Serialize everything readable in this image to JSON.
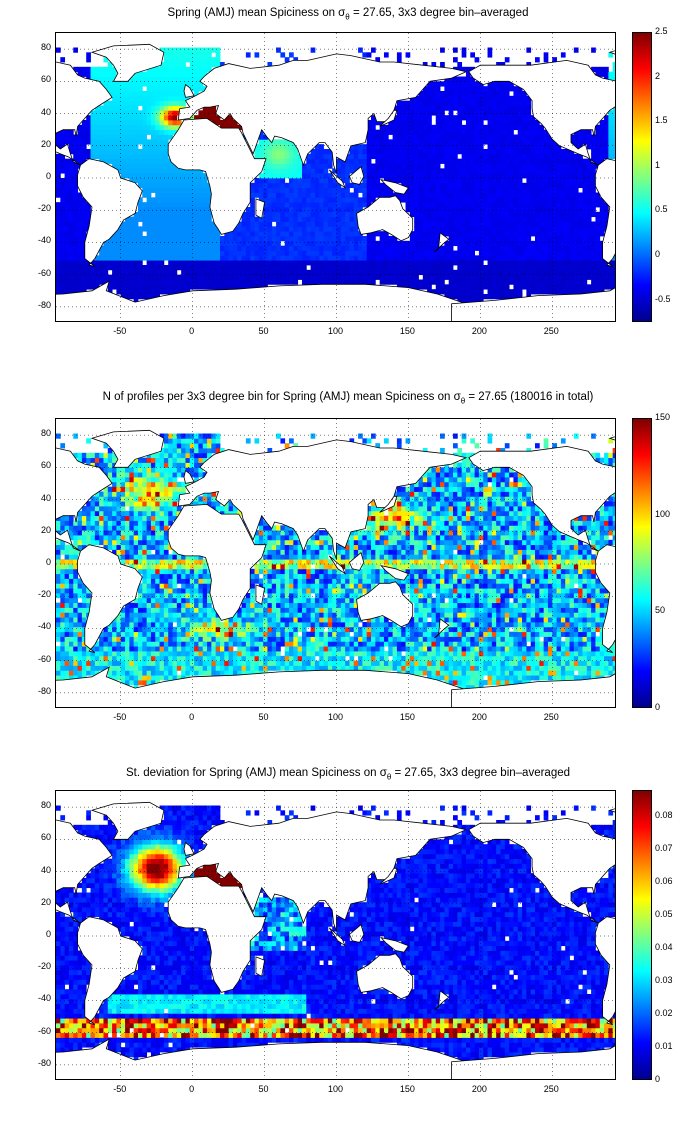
{
  "panels": [
    {
      "title_prefix": "Spring (AMJ) mean Spiciness on σ",
      "title_sub": "θ",
      "title_suffix": " = 27.65, 3x3 degree bin–averaged",
      "colorbar_ticks": [
        "2.5",
        "2",
        "1.5",
        "1",
        "0.5",
        "0",
        "-0.5"
      ],
      "colorbar_range": [
        -0.75,
        2.5
      ],
      "field": "spiciness"
    },
    {
      "title_prefix": "N of profiles per 3x3 degree bin for Spring (AMJ) mean Spiciness on σ",
      "title_sub": "θ",
      "title_suffix": " = 27.65 (180016 in total)",
      "colorbar_ticks": [
        "150",
        "100",
        "50",
        "0"
      ],
      "colorbar_range": [
        0,
        150
      ],
      "field": "count"
    },
    {
      "title_prefix": "St. deviation for Spring (AMJ) mean Spiciness on σ",
      "title_sub": "θ",
      "title_suffix": " = 27.65, 3x3 degree bin–averaged",
      "colorbar_ticks": [
        "0.08",
        "0.07",
        "0.06",
        "0.05",
        "0.04",
        "0.03",
        "0.02",
        "0.01",
        "0"
      ],
      "colorbar_range": [
        0,
        0.088
      ],
      "field": "stdev"
    }
  ],
  "axes": {
    "x_ticks": [
      "-50",
      "0",
      "50",
      "100",
      "150",
      "200",
      "250"
    ],
    "y_ticks": [
      "80",
      "60",
      "40",
      "20",
      "0",
      "-20",
      "-40",
      "-60",
      "-80"
    ],
    "x_range": [
      -95,
      295
    ],
    "y_range": [
      -90,
      90
    ]
  },
  "colors": {
    "colormap": [
      "#00008f",
      "#0000ff",
      "#0080ff",
      "#00ffff",
      "#80ff80",
      "#ffff00",
      "#ff8000",
      "#ff0000",
      "#800000"
    ]
  }
}
